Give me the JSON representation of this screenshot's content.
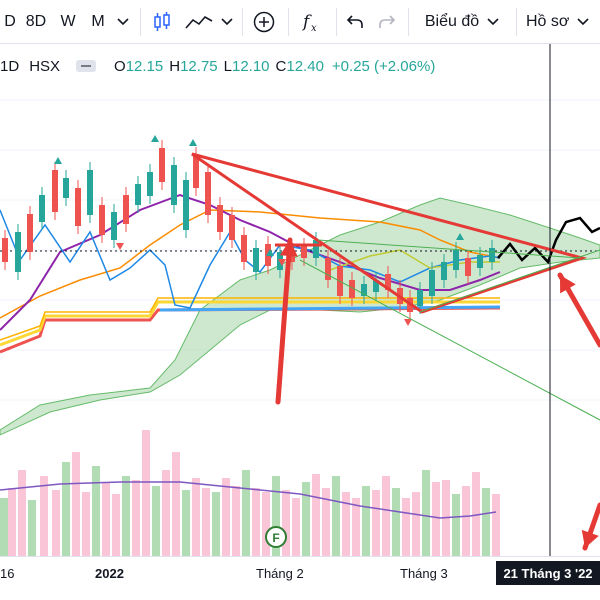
{
  "toolbar": {
    "interval_prev": "D",
    "interval_8d": "8D",
    "interval_w": "W",
    "interval_m": "M",
    "chart_type_icon": "candles-icon",
    "line_icon": "line-icon",
    "add_icon": "plus-circle-icon",
    "fx_icon": "fx-icon",
    "undo_icon": "undo-icon",
    "redo_icon": "redo-icon",
    "chart_menu": "Biểu đồ",
    "profile_menu": "Hồ sơ"
  },
  "legend": {
    "symbol_tail": "1D",
    "exchange": "HSX",
    "o_label": "O",
    "o_value": "12.15",
    "h_label": "H",
    "h_value": "12.75",
    "l_label": "L",
    "l_value": "12.10",
    "c_label": "C",
    "c_value": "12.40",
    "change": "+0.25 (+2.06%)"
  },
  "time_axis": {
    "ticks": [
      "16",
      "2022",
      "Tháng 2",
      "Tháng 3"
    ],
    "crosshair_label": "21 Tháng 3 '22"
  },
  "events": {
    "dividend_marker": "F"
  },
  "colors": {
    "up": "#26a69a",
    "down": "#ef5350",
    "annotation": "#e53935",
    "cloud": "#a5d6a7"
  }
}
